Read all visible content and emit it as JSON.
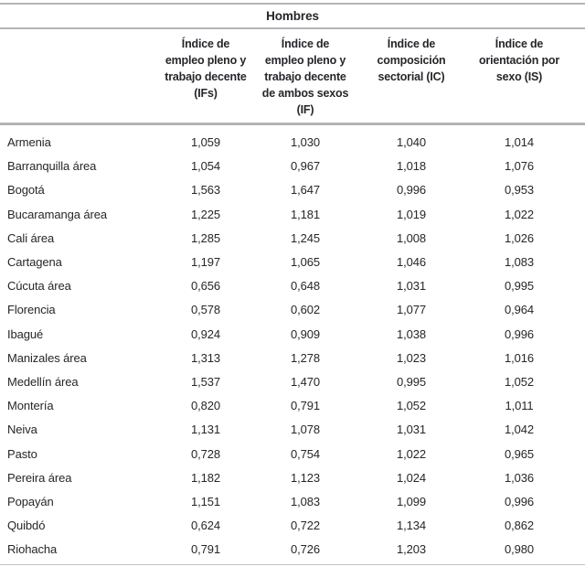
{
  "colors": {
    "rule_gray": "#b4b4b8",
    "text": "#26262b",
    "background": "#ffffff"
  },
  "table": {
    "group_header": "Hombres",
    "columns": [
      "Índice de\nempleo pleno y\ntrabajo decente\n(IFs)",
      "Índice de\nempleo pleno y\ntrabajo decente\nde ambos sexos\n(IF)",
      "Índice de\ncomposición\nsectorial (IC)",
      "Índice de\norientación por\nsexo (IS)"
    ],
    "rows": [
      {
        "name": "Armenia",
        "values": [
          "1,059",
          "1,030",
          "1,040",
          "1,014"
        ]
      },
      {
        "name": "Barranquilla área",
        "values": [
          "1,054",
          "0,967",
          "1,018",
          "1,076"
        ]
      },
      {
        "name": "Bogotá",
        "values": [
          "1,563",
          "1,647",
          "0,996",
          "0,953"
        ]
      },
      {
        "name": "Bucaramanga área",
        "values": [
          "1,225",
          "1,181",
          "1,019",
          "1,022"
        ]
      },
      {
        "name": "Cali área",
        "values": [
          "1,285",
          "1,245",
          "1,008",
          "1,026"
        ]
      },
      {
        "name": "Cartagena",
        "values": [
          "1,197",
          "1,065",
          "1,046",
          "1,083"
        ]
      },
      {
        "name": "Cúcuta área",
        "values": [
          "0,656",
          "0,648",
          "1,031",
          "0,995"
        ]
      },
      {
        "name": "Florencia",
        "values": [
          "0,578",
          "0,602",
          "1,077",
          "0,964"
        ]
      },
      {
        "name": "Ibagué",
        "values": [
          "0,924",
          "0,909",
          "1,038",
          "0,996"
        ]
      },
      {
        "name": "Manizales área",
        "values": [
          "1,313",
          "1,278",
          "1,023",
          "1,016"
        ]
      },
      {
        "name": "Medellín área",
        "values": [
          "1,537",
          "1,470",
          "0,995",
          "1,052"
        ]
      },
      {
        "name": "Montería",
        "values": [
          "0,820",
          "0,791",
          "1,052",
          "1,011"
        ]
      },
      {
        "name": "Neiva",
        "values": [
          "1,131",
          "1,078",
          "1,031",
          "1,042"
        ]
      },
      {
        "name": "Pasto",
        "values": [
          "0,728",
          "0,754",
          "1,022",
          "0,965"
        ]
      },
      {
        "name": "Pereira área",
        "values": [
          "1,182",
          "1,123",
          "1,024",
          "1,036"
        ]
      },
      {
        "name": "Popayán",
        "values": [
          "1,151",
          "1,083",
          "1,099",
          "0,996"
        ]
      },
      {
        "name": "Quibdó",
        "values": [
          "0,624",
          "0,722",
          "1,134",
          "0,862"
        ]
      },
      {
        "name": "Riohacha",
        "values": [
          "0,791",
          "0,726",
          "1,203",
          "0,980"
        ]
      }
    ]
  }
}
